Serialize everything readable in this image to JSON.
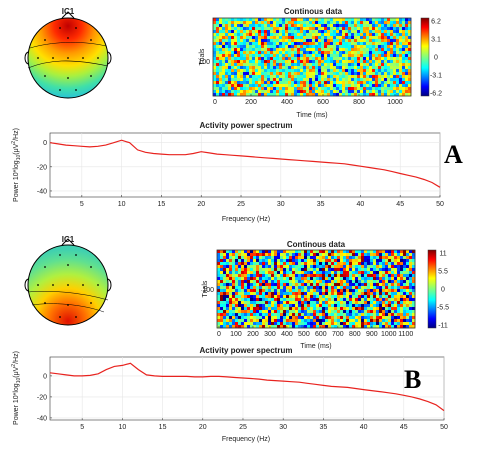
{
  "colors": {
    "line": "#e8231f",
    "axis": "#333333",
    "grid": "#e6e6e6"
  },
  "panels": [
    {
      "letter": "A",
      "topo_title": "IC1",
      "heatmap": {
        "title": "Continous data",
        "ylabel": "Trials",
        "ytick": "100",
        "xlabel": "Time (ms)",
        "xticks": [
          "0",
          "200",
          "400",
          "600",
          "800",
          "1000"
        ],
        "colorbar_ticks": [
          "6.2",
          "3.1",
          "0",
          "-3.1",
          "-6.2"
        ]
      },
      "spectrum": {
        "title": "Activity power spectrum",
        "xlabel": "Frequency (Hz)",
        "yticks": [
          "0",
          "-20",
          "-40"
        ],
        "xticks": [
          "5",
          "10",
          "15",
          "20",
          "25",
          "30",
          "35",
          "40",
          "45",
          "50"
        ]
      }
    },
    {
      "letter": "B",
      "topo_title": "IC1",
      "heatmap": {
        "title": "Continous data",
        "ylabel": "Trials",
        "ytick": "100",
        "xlabel": "Time (ms)",
        "xticks": [
          "0",
          "100",
          "200",
          "300",
          "400",
          "500",
          "600",
          "700",
          "800",
          "900",
          "1000",
          "1100"
        ],
        "colorbar_ticks": [
          "11",
          "5.5",
          "0",
          "-5.5",
          "-11"
        ]
      },
      "spectrum": {
        "title": "Activity power spectrum",
        "xlabel": "Frequency (Hz)",
        "yticks": [
          "0",
          "-20",
          "-40"
        ],
        "xticks": [
          "5",
          "10",
          "15",
          "20",
          "25",
          "30",
          "35",
          "40",
          "45",
          "50"
        ]
      }
    }
  ],
  "chart_data": [
    {
      "type": "line",
      "title": "Activity power spectrum",
      "xlabel": "Frequency (Hz)",
      "ylabel": "Power 10*log10(μV²/Hz)",
      "xlim": [
        1,
        50
      ],
      "ylim": [
        -45,
        8
      ],
      "series": [
        {
          "x": [
            1,
            2,
            3,
            4,
            5,
            6,
            7,
            8,
            9,
            10,
            11,
            12,
            13,
            14,
            15,
            16,
            17,
            18,
            19,
            20,
            21,
            22,
            23,
            24,
            25,
            26,
            27,
            28,
            29,
            30,
            31,
            32,
            33,
            34,
            35,
            36,
            37,
            38,
            39,
            40,
            41,
            42,
            43,
            44,
            45,
            46,
            47,
            48,
            49,
            50
          ],
          "values": [
            0,
            -1,
            -2,
            -2.5,
            -3,
            -3.5,
            -3,
            -2,
            0,
            2,
            0,
            -6,
            -8,
            -9,
            -9.5,
            -10,
            -10,
            -10,
            -9,
            -7.5,
            -8.5,
            -9.5,
            -10,
            -10.5,
            -11,
            -11.5,
            -12,
            -12.5,
            -13,
            -13.5,
            -14,
            -14.5,
            -15,
            -15.5,
            -16,
            -16.5,
            -17,
            -17.5,
            -18.5,
            -19.5,
            -20.5,
            -21.5,
            -22.5,
            -24,
            -25.5,
            -27,
            -28.5,
            -30.5,
            -33,
            -37
          ]
        }
      ]
    },
    {
      "type": "line",
      "title": "Activity power spectrum",
      "xlabel": "Frequency (Hz)",
      "ylabel": "Power 10*log10(μV²/Hz)",
      "xlim": [
        1,
        50
      ],
      "ylim": [
        -42,
        18
      ],
      "series": [
        {
          "x": [
            1,
            2,
            3,
            4,
            5,
            6,
            7,
            8,
            9,
            10,
            11,
            12,
            13,
            14,
            15,
            16,
            17,
            18,
            19,
            20,
            21,
            22,
            23,
            24,
            25,
            26,
            27,
            28,
            29,
            30,
            31,
            32,
            33,
            34,
            35,
            36,
            37,
            38,
            39,
            40,
            41,
            42,
            43,
            44,
            45,
            46,
            47,
            48,
            49,
            50
          ],
          "values": [
            3,
            2,
            1,
            0,
            0,
            0.5,
            2,
            6,
            9,
            10,
            12,
            6,
            1,
            0,
            -0.5,
            -0.5,
            -0.5,
            -0.5,
            -1,
            -1,
            -0.5,
            -0.5,
            -1,
            -1.5,
            -2,
            -2.5,
            -3,
            -4,
            -4.5,
            -5,
            -5.5,
            -6,
            -7,
            -8,
            -9,
            -10,
            -10.5,
            -11,
            -12,
            -13,
            -14,
            -15,
            -16,
            -17,
            -18.5,
            -20,
            -22,
            -24.5,
            -27.5,
            -33
          ]
        }
      ]
    }
  ]
}
